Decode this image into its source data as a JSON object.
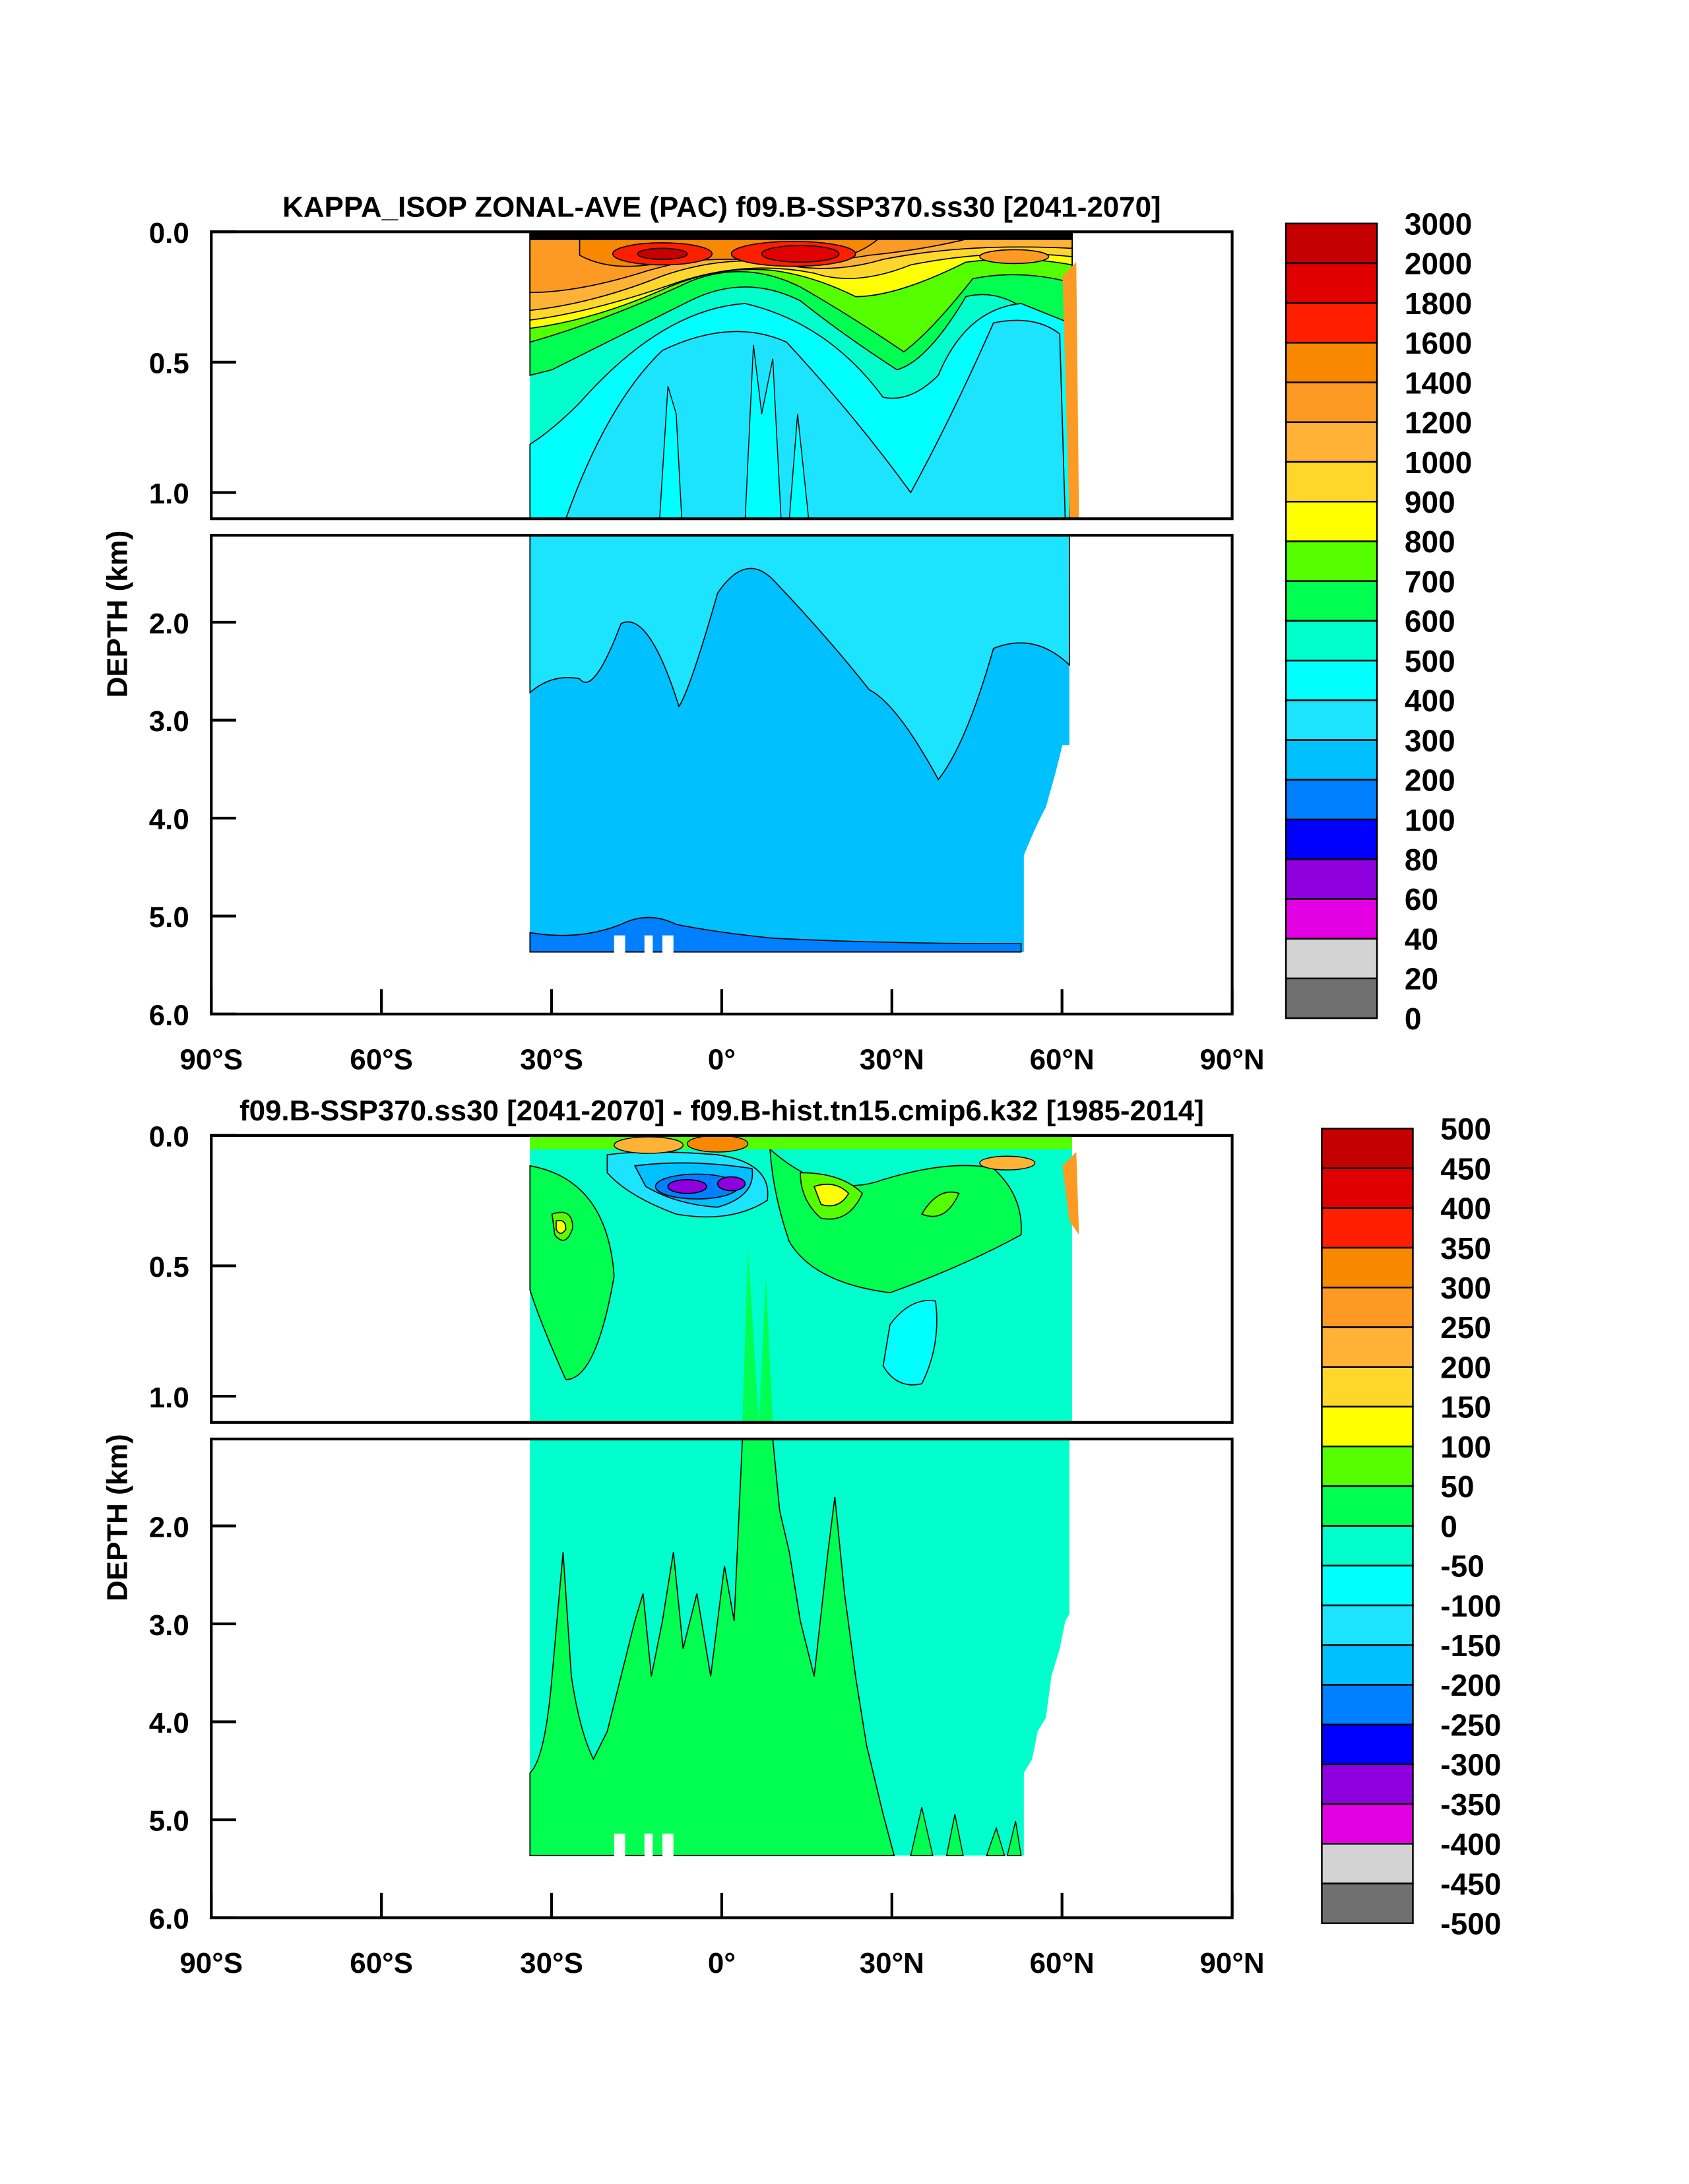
{
  "chart_data": [
    {
      "type": "heatmap",
      "subtype": "filled-contour",
      "title": "KAPPA_ISOP ZONAL-AVE (PAC) f09.B-SSP370.ss30 [2041-2070]",
      "ylabel": "DEPTH (km)",
      "xlabel": "",
      "xlim": [
        -90,
        90
      ],
      "ylim": [
        6.0,
        0.0
      ],
      "x_ticks": [
        "90°S",
        "60°S",
        "30°S",
        "0°",
        "30°N",
        "60°N",
        "90°N"
      ],
      "y_ticks_upper": [
        "0.0",
        "0.5",
        "1.0"
      ],
      "y_ticks_lower": [
        "2.0",
        "3.0",
        "4.0",
        "5.0",
        "6.0"
      ],
      "data_lat_range": [
        -34,
        62
      ],
      "max_depth_km": 5.35,
      "colorbar": {
        "labels": [
          "3000",
          "2000",
          "1800",
          "1600",
          "1400",
          "1200",
          "1000",
          "900",
          "800",
          "700",
          "600",
          "500",
          "400",
          "300",
          "200",
          "100",
          "80",
          "60",
          "40",
          "20",
          "0"
        ],
        "colors": [
          "#C40000",
          "#E10000",
          "#FF1E00",
          "#F88800",
          "#FC9A23",
          "#FFB236",
          "#FFD72A",
          "#FFFF00",
          "#55FF00",
          "#00FF50",
          "#00FFCC",
          "#00FFFF",
          "#1CE4FF",
          "#00C0FF",
          "#0080FF",
          "#0000FF",
          "#8F00DF",
          "#E300E3",
          "#D3D3D3",
          "#707070"
        ]
      }
    },
    {
      "type": "heatmap",
      "subtype": "filled-contour",
      "title": "f09.B-SSP370.ss30 [2041-2070] - f09.B-hist.tn15.cmip6.k32 [1985-2014]",
      "ylabel": "DEPTH (km)",
      "xlabel": "",
      "xlim": [
        -90,
        90
      ],
      "ylim": [
        6.0,
        0.0
      ],
      "x_ticks": [
        "90°S",
        "60°S",
        "30°S",
        "0°",
        "30°N",
        "60°N",
        "90°N"
      ],
      "y_ticks_upper": [
        "0.0",
        "0.5",
        "1.0"
      ],
      "y_ticks_lower": [
        "2.0",
        "3.0",
        "4.0",
        "5.0",
        "6.0"
      ],
      "data_lat_range": [
        -34,
        62
      ],
      "max_depth_km": 5.35,
      "colorbar": {
        "labels": [
          "500",
          "450",
          "400",
          "350",
          "300",
          "250",
          "200",
          "150",
          "100",
          "50",
          "0",
          "-50",
          "-100",
          "-150",
          "-200",
          "-250",
          "-300",
          "-350",
          "-400",
          "-450",
          "-500"
        ],
        "colors": [
          "#C40000",
          "#E10000",
          "#FF1E00",
          "#F88800",
          "#FC9A23",
          "#FFB236",
          "#FFD72A",
          "#FFFF00",
          "#55FF00",
          "#00FF50",
          "#00FFCC",
          "#00FFFF",
          "#1CE4FF",
          "#00C0FF",
          "#0080FF",
          "#0000FF",
          "#8F00DF",
          "#E300E3",
          "#D3D3D3",
          "#707070"
        ]
      }
    }
  ]
}
